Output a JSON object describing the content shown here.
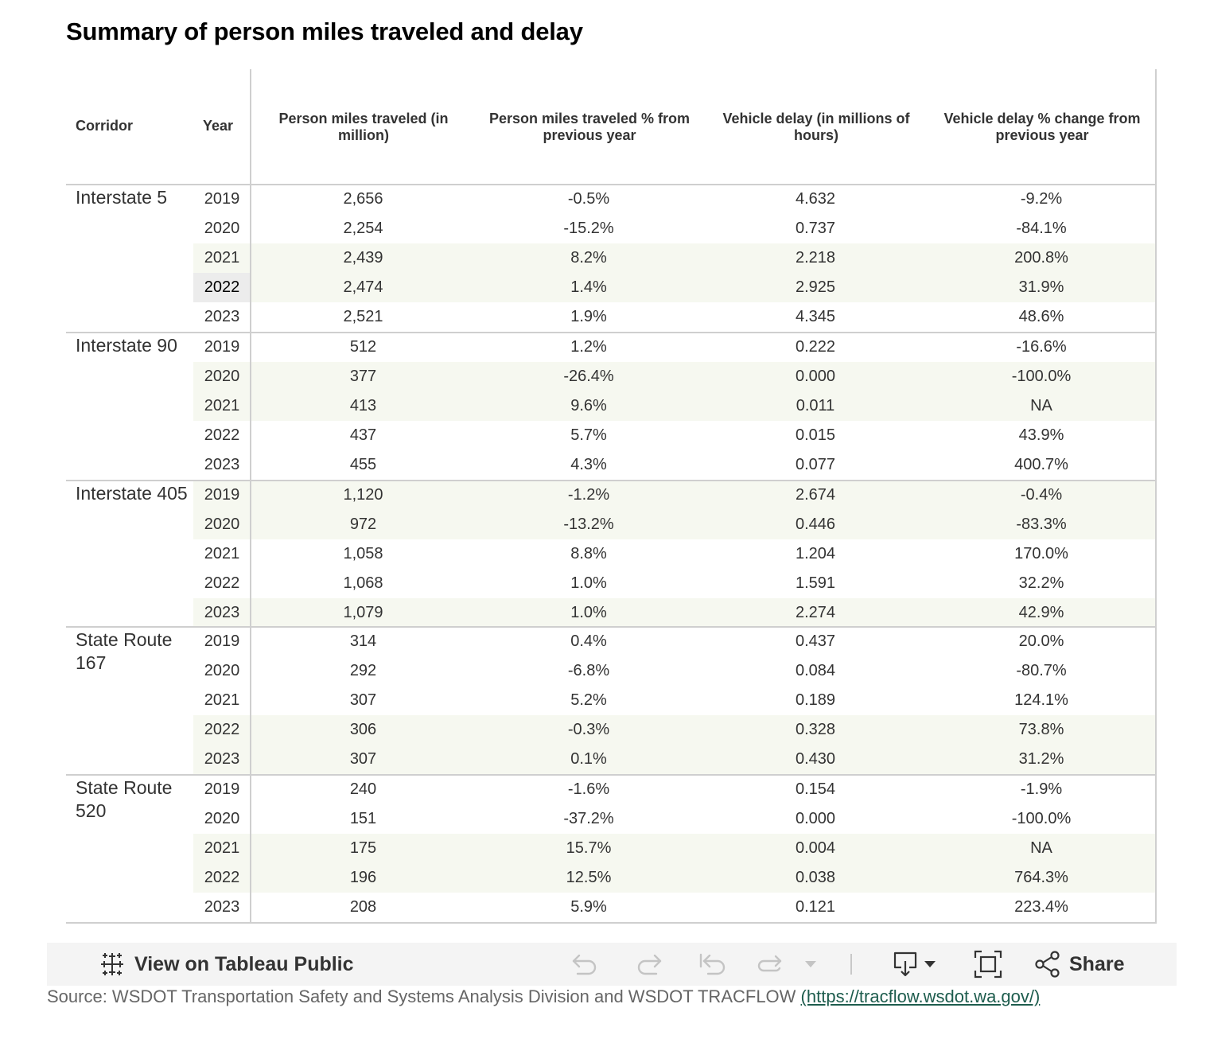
{
  "title": "Summary of person miles traveled and delay",
  "headers": {
    "corridor": "Corridor",
    "year": "Year",
    "pmt": "Person miles traveled (in million)",
    "pmt_pct": "Person miles traveled % from previous year",
    "delay": "Vehicle delay (in millions of hours)",
    "delay_pct": "Vehicle delay % change from previous year"
  },
  "groups": [
    {
      "corridor": "Interstate 5",
      "rows": [
        {
          "year": "2019",
          "pmt": "2,656",
          "pmt_pct": "-0.5%",
          "delay": "4.632",
          "delay_pct": "-9.2%"
        },
        {
          "year": "2020",
          "pmt": "2,254",
          "pmt_pct": "-15.2%",
          "delay": "0.737",
          "delay_pct": "-84.1%"
        },
        {
          "year": "2021",
          "pmt": "2,439",
          "pmt_pct": "8.2%",
          "delay": "2.218",
          "delay_pct": "200.8%"
        },
        {
          "year": "2022",
          "pmt": "2,474",
          "pmt_pct": "1.4%",
          "delay": "2.925",
          "delay_pct": "31.9%"
        },
        {
          "year": "2023",
          "pmt": "2,521",
          "pmt_pct": "1.9%",
          "delay": "4.345",
          "delay_pct": "48.6%"
        }
      ]
    },
    {
      "corridor": "Interstate 90",
      "rows": [
        {
          "year": "2019",
          "pmt": "512",
          "pmt_pct": "1.2%",
          "delay": "0.222",
          "delay_pct": "-16.6%"
        },
        {
          "year": "2020",
          "pmt": "377",
          "pmt_pct": "-26.4%",
          "delay": "0.000",
          "delay_pct": "-100.0%"
        },
        {
          "year": "2021",
          "pmt": "413",
          "pmt_pct": "9.6%",
          "delay": "0.011",
          "delay_pct": "NA"
        },
        {
          "year": "2022",
          "pmt": "437",
          "pmt_pct": "5.7%",
          "delay": "0.015",
          "delay_pct": "43.9%"
        },
        {
          "year": "2023",
          "pmt": "455",
          "pmt_pct": "4.3%",
          "delay": "0.077",
          "delay_pct": "400.7%"
        }
      ]
    },
    {
      "corridor": "Interstate 405",
      "rows": [
        {
          "year": "2019",
          "pmt": "1,120",
          "pmt_pct": "-1.2%",
          "delay": "2.674",
          "delay_pct": "-0.4%"
        },
        {
          "year": "2020",
          "pmt": "972",
          "pmt_pct": "-13.2%",
          "delay": "0.446",
          "delay_pct": "-83.3%"
        },
        {
          "year": "2021",
          "pmt": "1,058",
          "pmt_pct": "8.8%",
          "delay": "1.204",
          "delay_pct": "170.0%"
        },
        {
          "year": "2022",
          "pmt": "1,068",
          "pmt_pct": "1.0%",
          "delay": "1.591",
          "delay_pct": "32.2%"
        },
        {
          "year": "2023",
          "pmt": "1,079",
          "pmt_pct": "1.0%",
          "delay": "2.274",
          "delay_pct": "42.9%"
        }
      ]
    },
    {
      "corridor": "State Route 167",
      "rows": [
        {
          "year": "2019",
          "pmt": "314",
          "pmt_pct": "0.4%",
          "delay": "0.437",
          "delay_pct": "20.0%"
        },
        {
          "year": "2020",
          "pmt": "292",
          "pmt_pct": "-6.8%",
          "delay": "0.084",
          "delay_pct": "-80.7%"
        },
        {
          "year": "2021",
          "pmt": "307",
          "pmt_pct": "5.2%",
          "delay": "0.189",
          "delay_pct": "124.1%"
        },
        {
          "year": "2022",
          "pmt": "306",
          "pmt_pct": "-0.3%",
          "delay": "0.328",
          "delay_pct": "73.8%"
        },
        {
          "year": "2023",
          "pmt": "307",
          "pmt_pct": "0.1%",
          "delay": "0.430",
          "delay_pct": "31.2%"
        }
      ]
    },
    {
      "corridor": "State Route 520",
      "rows": [
        {
          "year": "2019",
          "pmt": "240",
          "pmt_pct": "-1.6%",
          "delay": "0.154",
          "delay_pct": "-1.9%"
        },
        {
          "year": "2020",
          "pmt": "151",
          "pmt_pct": "-37.2%",
          "delay": "0.000",
          "delay_pct": "-100.0%"
        },
        {
          "year": "2021",
          "pmt": "175",
          "pmt_pct": "15.7%",
          "delay": "0.004",
          "delay_pct": "NA"
        },
        {
          "year": "2022",
          "pmt": "196",
          "pmt_pct": "12.5%",
          "delay": "0.038",
          "delay_pct": "764.3%"
        },
        {
          "year": "2023",
          "pmt": "208",
          "pmt_pct": "5.9%",
          "delay": "0.121",
          "delay_pct": "223.4%"
        }
      ]
    }
  ],
  "shaded_rows": [
    2,
    3,
    6,
    7,
    10,
    11,
    14,
    18,
    19,
    22,
    23
  ],
  "hovered_row": 3,
  "toolbar": {
    "view_label": "View on Tableau Public",
    "share_label": "Share",
    "icons": [
      "tableau-logo-icon",
      "undo-icon",
      "redo-icon",
      "revert-icon",
      "refresh-icon",
      "caret-down-icon",
      "download-icon",
      "fullscreen-icon",
      "share-icon"
    ]
  },
  "source": {
    "text": "Source: WSDOT Transportation Safety and Systems Analysis Division and WSDOT TRACFLOW ",
    "link": "(https://tracflow.wsdot.wa.gov/)"
  },
  "colors": {
    "band": "#f6f8f0",
    "hover": "#ececec",
    "grid": "#cfcfcf",
    "toolbar_bg": "#f4f4f4",
    "link": "#1d5c4d"
  }
}
